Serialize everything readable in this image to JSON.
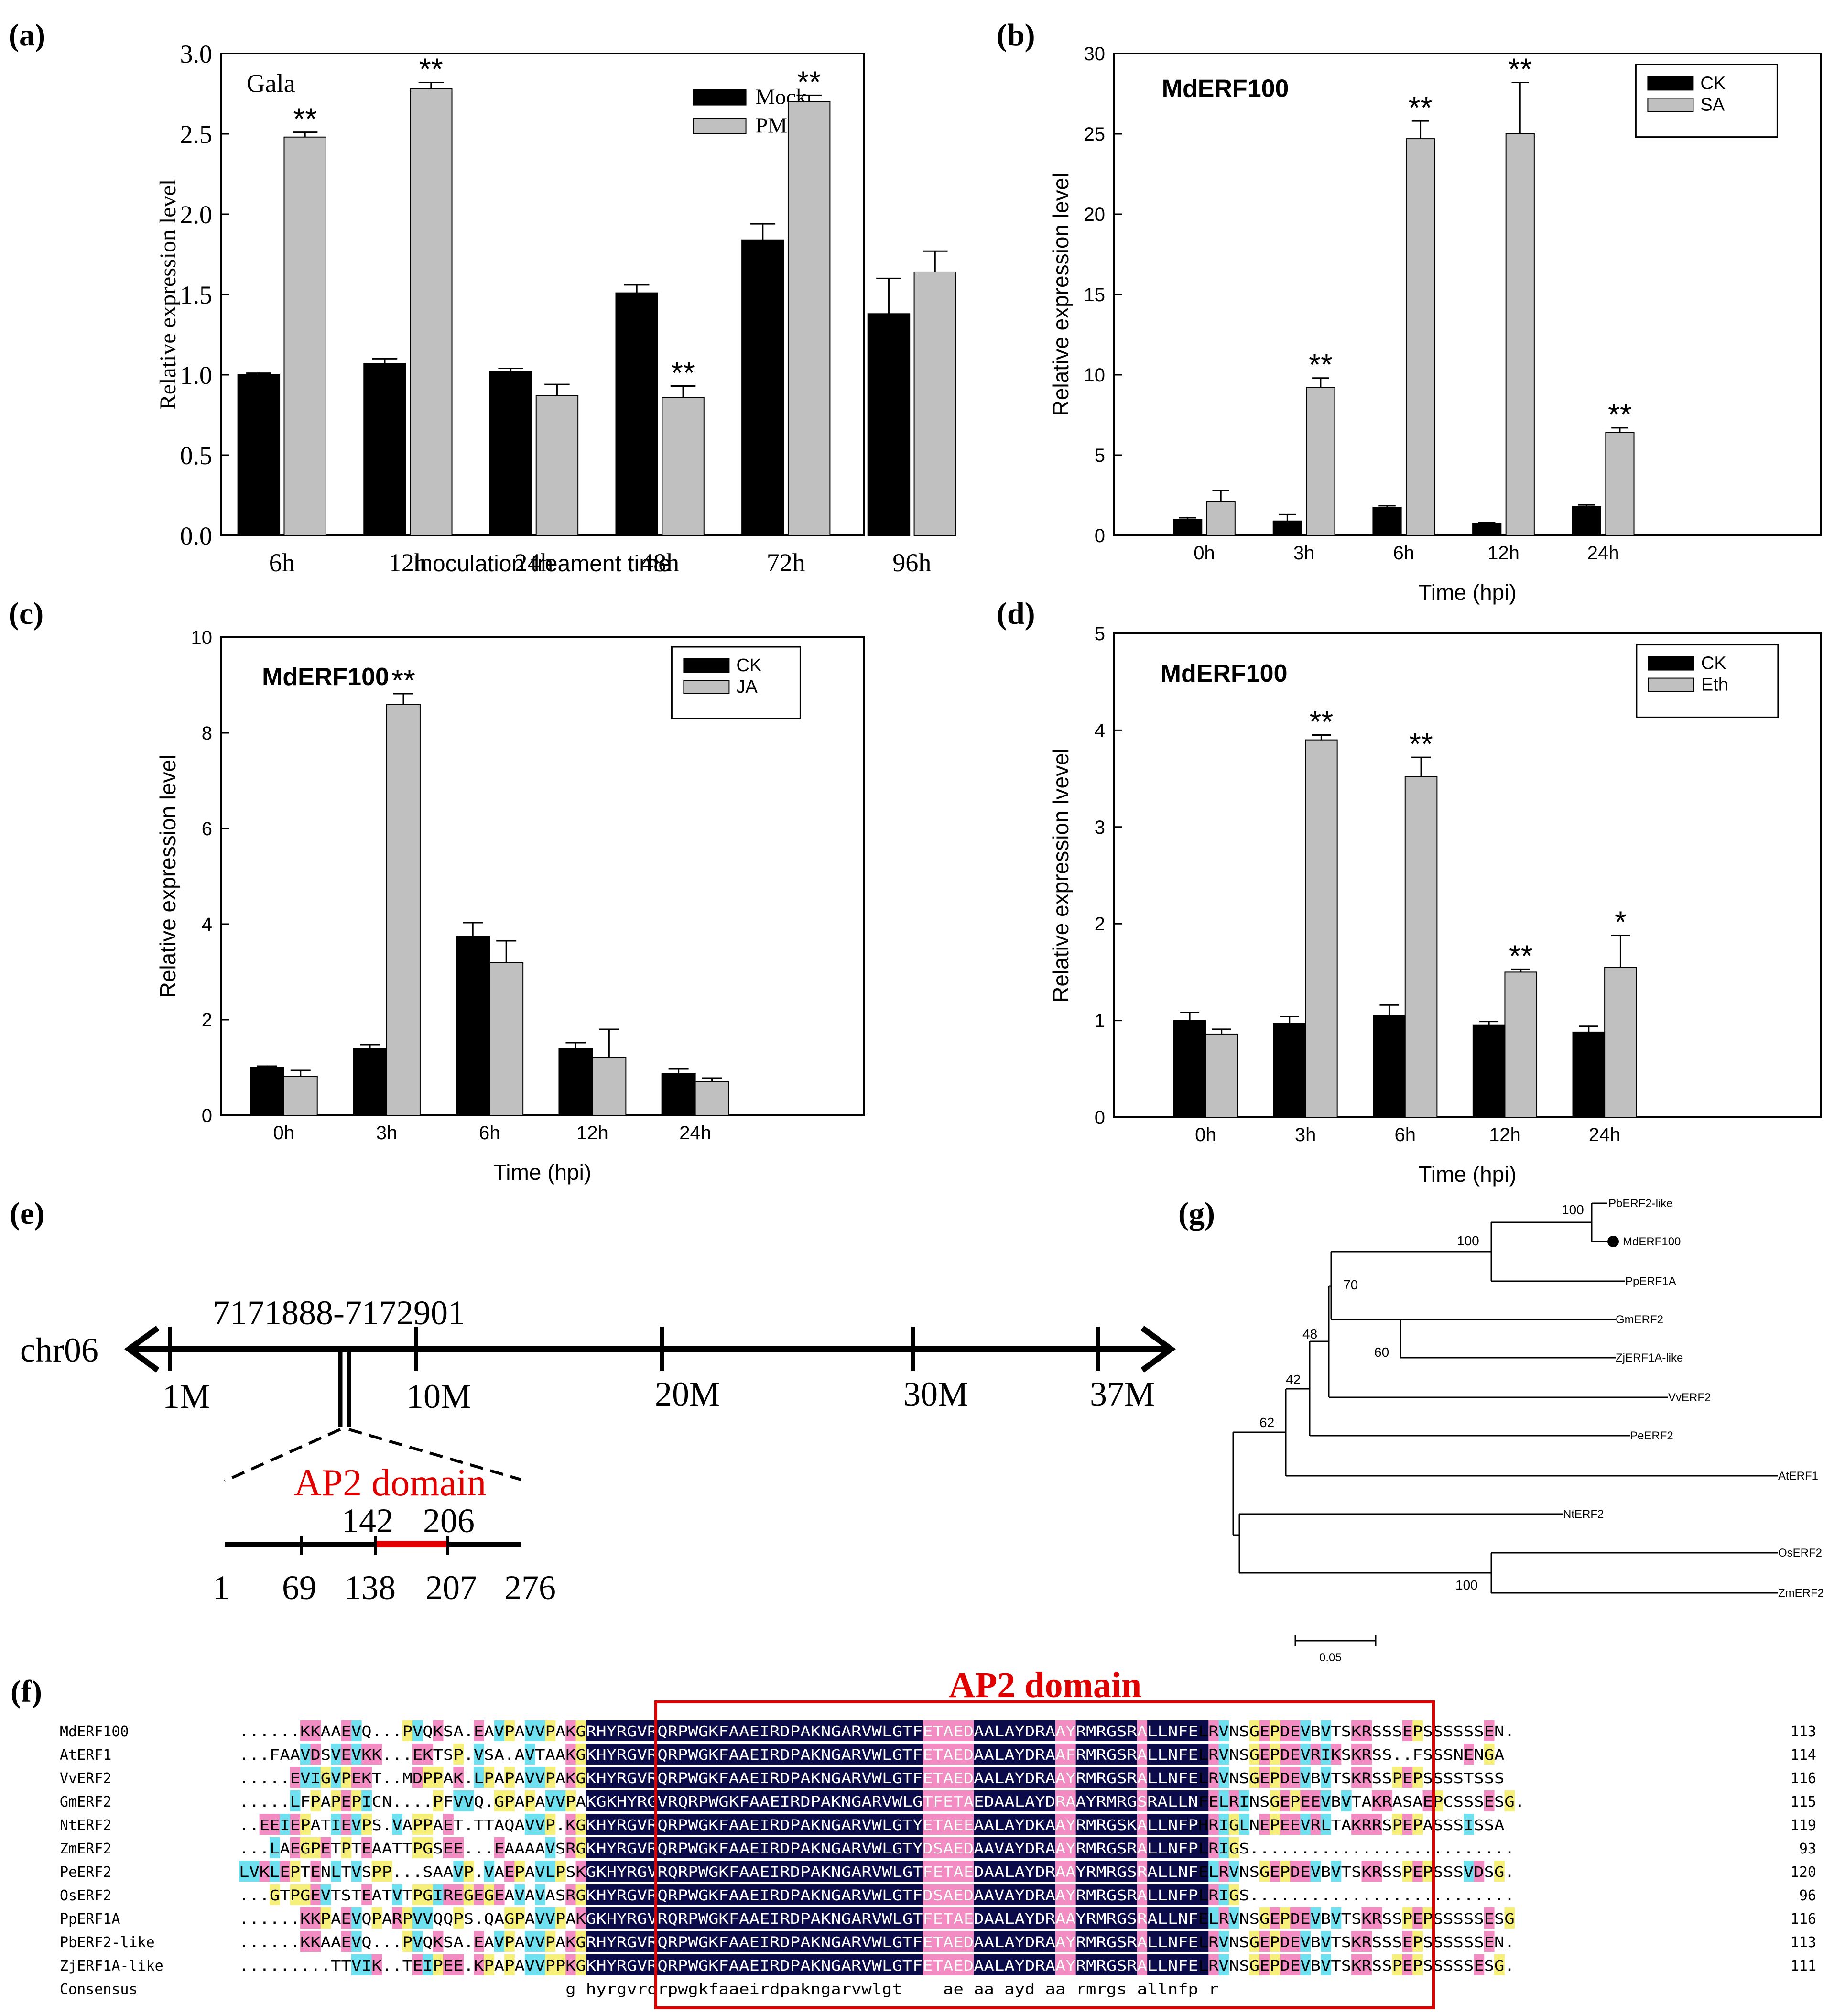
{
  "colors": {
    "black_bar": "#000000",
    "gray_bar": "#c0c0c0",
    "ap2_red": "#e00000",
    "align_navy": "#0b0b4a",
    "align_pink": "#f28cc2",
    "align_cyan": "#6fe0f0",
    "align_yellow": "#f6f07a"
  },
  "chart_data": [
    {
      "id": "a",
      "panel_label": "(a)",
      "type": "bar",
      "title": "Gala",
      "categories": [
        "6h",
        "12h",
        "24h",
        "48h",
        "72h",
        "96h"
      ],
      "series": [
        {
          "name": "Mock",
          "values": [
            1.0,
            1.07,
            1.02,
            1.51,
            1.84,
            1.38
          ],
          "errors": [
            0.01,
            0.03,
            0.02,
            0.05,
            0.1,
            0.22
          ]
        },
        {
          "name": "PM",
          "values": [
            2.48,
            2.78,
            0.87,
            0.86,
            2.7,
            1.64
          ],
          "errors": [
            0.03,
            0.04,
            0.07,
            0.07,
            0.04,
            0.13
          ]
        }
      ],
      "significance": [
        "**",
        "**",
        "",
        "**",
        "**",
        ""
      ],
      "xlabel": "Inoculation treament time",
      "ylabel": "Relative expression level",
      "ylim": [
        0,
        3.0
      ],
      "yticks": [
        "0.0",
        "0.5",
        "1.0",
        "1.5",
        "2.0",
        "2.5",
        "3.0"
      ]
    },
    {
      "id": "b",
      "panel_label": "(b)",
      "type": "bar",
      "title": "MdERF100",
      "categories": [
        "0h",
        "3h",
        "6h",
        "12h",
        "24h"
      ],
      "series": [
        {
          "name": "CK",
          "values": [
            1.0,
            0.9,
            1.75,
            0.75,
            1.8
          ],
          "errors": [
            0.1,
            0.4,
            0.1,
            0.05,
            0.1
          ]
        },
        {
          "name": "SA",
          "values": [
            2.1,
            9.2,
            24.7,
            25.0,
            6.4
          ],
          "errors": [
            0.7,
            0.6,
            1.1,
            3.2,
            0.3
          ]
        }
      ],
      "significance": [
        "",
        "**",
        "**",
        "**",
        "**"
      ],
      "xlabel": "Time (hpi)",
      "ylabel": "Relative expression level",
      "ylim": [
        0,
        30
      ],
      "yticks": [
        "0",
        "5",
        "10",
        "15",
        "20",
        "25",
        "30"
      ]
    },
    {
      "id": "c",
      "panel_label": "(c)",
      "type": "bar",
      "title": "MdERF100",
      "categories": [
        "0h",
        "3h",
        "6h",
        "12h",
        "24h"
      ],
      "series": [
        {
          "name": "CK",
          "values": [
            1.0,
            1.4,
            3.75,
            1.4,
            0.87
          ],
          "errors": [
            0.03,
            0.08,
            0.28,
            0.12,
            0.1
          ]
        },
        {
          "name": "JA",
          "values": [
            0.82,
            8.6,
            3.2,
            1.2,
            0.7
          ],
          "errors": [
            0.12,
            0.22,
            0.45,
            0.6,
            0.08
          ]
        }
      ],
      "significance": [
        "",
        "**",
        "",
        "",
        ""
      ],
      "xlabel": "Time (hpi)",
      "ylabel": "Relative expression level",
      "ylim": [
        0,
        10
      ],
      "yticks": [
        "0",
        "2",
        "4",
        "6",
        "8",
        "10"
      ]
    },
    {
      "id": "d",
      "panel_label": "(d)",
      "type": "bar",
      "title": "MdERF100",
      "categories": [
        "0h",
        "3h",
        "6h",
        "12h",
        "24h"
      ],
      "series": [
        {
          "name": "CK",
          "values": [
            1.0,
            0.97,
            1.05,
            0.95,
            0.88
          ],
          "errors": [
            0.08,
            0.07,
            0.11,
            0.04,
            0.06
          ]
        },
        {
          "name": "Eth",
          "values": [
            0.86,
            3.9,
            3.52,
            1.5,
            1.55
          ],
          "errors": [
            0.05,
            0.05,
            0.2,
            0.03,
            0.33
          ]
        }
      ],
      "significance": [
        "",
        "**",
        "**",
        "**",
        "*"
      ],
      "xlabel": "Time (hpi)",
      "ylabel": "Relative expression lvevel",
      "ylim": [
        0,
        5
      ],
      "yticks": [
        "0",
        "1",
        "2",
        "3",
        "4",
        "5"
      ]
    }
  ],
  "panel_e": {
    "label": "(e)",
    "chromosome": "chr06",
    "position": "7171888-7172901",
    "ticks": [
      "1M",
      "10M",
      "20M",
      "30M",
      "37M"
    ],
    "domain_name": "AP2 domain",
    "domain_start": "142",
    "domain_end": "206",
    "gene_ticks": [
      "1",
      "69",
      "138",
      "207",
      "276"
    ]
  },
  "panel_g": {
    "label": "(g)",
    "taxa": [
      "PbERF2-like",
      "MdERF100",
      "PpERF1A",
      "GmERF2",
      "ZjERF1A-like",
      "VvERF2",
      "PeERF2",
      "AtERF1",
      "NtERF2",
      "OsERF2",
      "ZmERF2"
    ],
    "bootstrap": [
      "100",
      "100",
      "70",
      "60",
      "48",
      "42",
      "62",
      "100"
    ],
    "scale": "0.05"
  },
  "panel_f": {
    "label": "(f)",
    "domain_title": "AP2 domain",
    "rows": [
      {
        "name": "MdERF100",
        "seq": "......KKAAEVQ...PVQKSA.EAVPAVVPAKGRHYRGVRQRPWGKFAAEIRDPAKNGARVWLGTFETAEDAALAYDRAAYRMRGSRALLNFELRVNSGEPDEVBVTSKRSSSEPSSSSSSEN.",
        "len": "113"
      },
      {
        "name": "AtERF1",
        "seq": "...FAAVDSVEVKK...EKTSP.VSA.AVTAAKGKHYRGVRQRPWGKFAAEIRDPAKNGARVWLGTFETAEDAALAYDRAAFRMRGSRALLNFELRVNSGEPDEVRIKSKRSS..FSSSNENGA",
        "len": "114"
      },
      {
        "name": "VvERF2",
        "seq": ".....EVIGVPEKT..MDPPAK.LPAPAVVPAKGKHYRGVRQRPWGKFAAEIRDPAKNGARVWLGTFETAEDAALAYDRAAYRMRGSRALLNFELRVNSGEPDEVBVTSKRSSPEPSSSSTSSS",
        "len": "116"
      },
      {
        "name": "GmERF2",
        "seq": ".....LFPAPEPICN....PFVVQ.GPAPAVVPAKGKHYRGVRQRPWGKFAAEIRDPAKNGARVWLGTFETAEDAALAYDRAAYRMRGSRALLNFELRINSGEPEEVBVTAKRASAEPCSSSESG.",
        "len": "115"
      },
      {
        "name": "NtERF2",
        "seq": "..EEIEPATIEVPS.VAPPAET.TTAQAVVP.KGKHYRGVRQRPWGKFAAEIRDPAKNGARVWLGTYETAEEAALAYDKAAYRMRGSKALLNFPHRIGLNEPEEVRLTAKRRSPEPASSSISSA",
        "len": "119"
      },
      {
        "name": "ZmERF2",
        "seq": "...LAEGPETPTEAATTPGSEE...EAAAAVSRGKHYRGVRQRPWGKFAAEIRDPAKNGARVWLGTYDSAEDAAVAYDRAAYRMRGSRALLNFPLRIGS..........................",
        "len": "93"
      },
      {
        "name": "PeERF2",
        "seq": "LVKLEPTENLTVSPP...SAAVP.VAEPAVLPSKGKHYRGVRQRPWGKFAAEIRDPAKNGARVWLGTFETAEDAALAYDRAAYRMRGSRALLNFELRVNSGEPDEVBVTSKRSSPEPSSSVDSG.",
        "len": "120"
      },
      {
        "name": "OsERF2",
        "seq": "...GTPGEVTSTEATVTPGIREGEGEAVAVASRGKHYRGVRQRPWGKFAAEIRDPAKNGARVWLGTFDSAEDAAVAYDRAAYRMRGSRALLNFPLRIGS..........................",
        "len": "96"
      },
      {
        "name": "PpERF1A",
        "seq": "......KKPAEVQPARPVVQQPS.QAGPAVVPAKGKHYRGVRQRPWGKFAAEIRDPAKNGARVWLGTFETAEDAALAYDRAAYRMRGSRALLNFELRVNSGEPDEVBVTSKRSSPEPSSSSSESG",
        "len": "116"
      },
      {
        "name": "PbERF2-like",
        "seq": "......KKAAEVQ...PVQKSA.EAVPAVVPAKGRHYRGVRQRPWGKFAAEIRDPAKNGARVWLGTFETAEDAALAYDRAAYRMRGSRALLNFELRVNSGEPDEVBVTSKRSSSEPSSSSSSEN.",
        "len": "113"
      },
      {
        "name": "ZjERF1A-like",
        "seq": ".........TTVIK..TEIPEE.KPAPAVVPPKGKHYRGVRQRPWGKFAAEIRDPAKNGARVWLGTFETAEDAALAYDRAAYRMRGSRALLNFELRVNSGEPDEVBVTSKRSSPEPSSSSSESG.",
        "len": "111"
      }
    ],
    "consensus_name": "Consensus",
    "consensus": "                                g hyrgvrqrpwgkfaaeirdpakngarvwlgt    ae aa ayd aa rmrgs allnfp r                        "
  }
}
